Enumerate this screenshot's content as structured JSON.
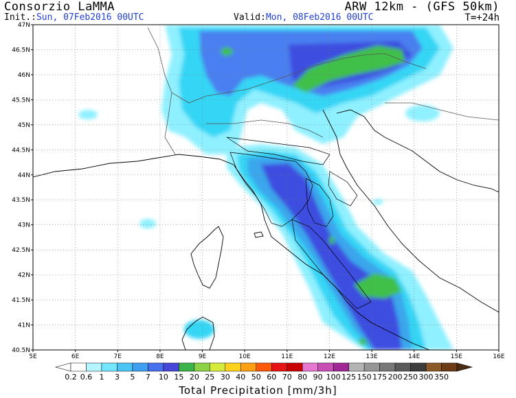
{
  "header": {
    "provider": "Consorzio LaMMA",
    "model": "ARW 12km - (GFS 50km)",
    "init_label": "Init.:",
    "init_value": "Sun, 07Feb2016 00UTC",
    "valid_label": "Valid:",
    "valid_value": "Mon, 08Feb2016 00UTC",
    "lead_time": "T=+24h"
  },
  "map": {
    "lat_labels": [
      "47N",
      "46.5N",
      "46N",
      "45.5N",
      "45N",
      "44.5N",
      "44N",
      "43.5N",
      "43N",
      "42.5N",
      "42N",
      "41.5N",
      "41N",
      "40.5N"
    ],
    "lon_labels": [
      "5E",
      "6E",
      "7E",
      "8E",
      "9E",
      "10E",
      "11E",
      "12E",
      "13E",
      "14E",
      "15E",
      "16E"
    ],
    "lat_range": [
      40.5,
      47
    ],
    "lon_range": [
      5,
      16
    ],
    "grid": true,
    "precip_colors": {
      "light": "#8ff0ff",
      "cyan": "#35d6f5",
      "mid_blue": "#3aa6ec",
      "blue": "#4a7ff0",
      "deep_blue": "#3d4ee0",
      "green": "#3fbf4a"
    }
  },
  "legend": {
    "title": "Total Precipitation [mm/3h]",
    "entries": [
      {
        "label": "0.2",
        "color": "#ffffff"
      },
      {
        "label": "0.6",
        "color": "#b4f5ff"
      },
      {
        "label": "1",
        "color": "#74e6ff"
      },
      {
        "label": "3",
        "color": "#4ac5f5"
      },
      {
        "label": "5",
        "color": "#3e9ff0"
      },
      {
        "label": "7",
        "color": "#4770ee"
      },
      {
        "label": "10",
        "color": "#4646d8"
      },
      {
        "label": "15",
        "color": "#3cb44a"
      },
      {
        "label": "20",
        "color": "#8cd246"
      },
      {
        "label": "25",
        "color": "#d7eb3c"
      },
      {
        "label": "30",
        "color": "#ffd21e"
      },
      {
        "label": "40",
        "color": "#ffa014"
      },
      {
        "label": "50",
        "color": "#ff5a0a"
      },
      {
        "label": "60",
        "color": "#e61414"
      },
      {
        "label": "70",
        "color": "#c80000"
      },
      {
        "label": "80",
        "color": "#e678d2"
      },
      {
        "label": "90",
        "color": "#c850b4"
      },
      {
        "label": "100",
        "color": "#a02896"
      },
      {
        "label": "125",
        "color": "#b4b4b4"
      },
      {
        "label": "150",
        "color": "#969696"
      },
      {
        "label": "175",
        "color": "#787878"
      },
      {
        "label": "200",
        "color": "#5a5a5a"
      },
      {
        "label": "250",
        "color": "#3c3c3c"
      },
      {
        "label": "300",
        "color": "#8c5a28"
      },
      {
        "label": "350",
        "color": "#6e3c14"
      }
    ],
    "extend_color_low": "#ffffff",
    "extend_color_high": "#4a2a10"
  }
}
